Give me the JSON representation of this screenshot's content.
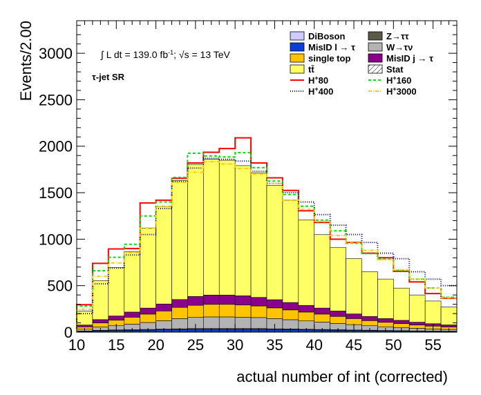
{
  "chart_data": {
    "type": "bar",
    "stacked": true,
    "xlabel": "actual number of int (corrected)",
    "ylabel": "Events/2.00",
    "xlim": [
      10,
      58
    ],
    "ylim": [
      0,
      3350
    ],
    "bin_width": 2,
    "x_ticks": [
      10,
      15,
      20,
      25,
      30,
      35,
      40,
      45,
      50,
      55
    ],
    "y_ticks": [
      0,
      500,
      1000,
      1500,
      2000,
      2500,
      3000
    ],
    "annotation": {
      "lumi_prefix": "∫ L dt = 139.0 fb",
      "lumi_sup": "-1",
      "energy": "; √s = 13 TeV",
      "region": "τ-jet SR"
    },
    "bin_edges": [
      10,
      12,
      14,
      16,
      18,
      20,
      22,
      24,
      26,
      28,
      30,
      32,
      34,
      36,
      38,
      40,
      42,
      44,
      46,
      48,
      50,
      52,
      54,
      56,
      58
    ],
    "stack": [
      {
        "name": "MisID l → τ",
        "color": "#0a3ed8",
        "values": [
          8,
          15,
          18,
          20,
          22,
          25,
          28,
          30,
          30,
          30,
          30,
          30,
          28,
          26,
          24,
          22,
          20,
          18,
          16,
          14,
          12,
          10,
          8,
          7
        ]
      },
      {
        "name": "Z→ττ",
        "color": "#5b5a46",
        "values": [
          4,
          5,
          6,
          6,
          7,
          8,
          8,
          9,
          9,
          9,
          9,
          9,
          8,
          8,
          7,
          7,
          6,
          5,
          5,
          4,
          4,
          3,
          3,
          3
        ]
      },
      {
        "name": "W→τν",
        "color": "#b3b3b3",
        "values": [
          20,
          35,
          45,
          60,
          75,
          90,
          110,
          120,
          125,
          125,
          122,
          118,
          110,
          100,
          90,
          80,
          68,
          58,
          48,
          40,
          34,
          28,
          24,
          20
        ]
      },
      {
        "name": "single top",
        "color": "#ffc400",
        "values": [
          25,
          45,
          60,
          75,
          90,
          105,
          120,
          130,
          135,
          135,
          132,
          125,
          115,
          105,
          95,
          85,
          75,
          65,
          55,
          48,
          42,
          36,
          30,
          26
        ]
      },
      {
        "name": "MisID j → τ",
        "color": "#8a008a",
        "values": [
          20,
          35,
          45,
          55,
          65,
          75,
          85,
          95,
          100,
          100,
          98,
          92,
          88,
          80,
          72,
          65,
          58,
          50,
          45,
          40,
          35,
          30,
          26,
          22
        ]
      },
      {
        "name": "tt̄",
        "color": "#ffff66",
        "values": [
          150,
          420,
          520,
          650,
          860,
          1050,
          1280,
          1420,
          1460,
          1450,
          1400,
          1340,
          1230,
          1100,
          920,
          790,
          685,
          595,
          480,
          425,
          347,
          293,
          244,
          192
        ]
      }
    ],
    "lines": [
      {
        "name": "H+80",
        "color": "#ff0000",
        "dash": "",
        "values": [
          295,
          740,
          895,
          900,
          1390,
          1420,
          1655,
          1820,
          1935,
          1975,
          2090,
          1820,
          1660,
          1525,
          1305,
          1180,
          1000,
          965,
          850,
          800,
          655,
          540,
          415,
          365
        ]
      },
      {
        "name": "H+160",
        "color": "#00dd00",
        "dash": "4,3",
        "values": [
          280,
          660,
          805,
          945,
          1250,
          1400,
          1665,
          1925,
          1895,
          1885,
          1930,
          1770,
          1625,
          1480,
          1355,
          1205,
          1090,
          955,
          845,
          785,
          665,
          570,
          475,
          375
        ]
      },
      {
        "name": "H+400",
        "color": "#000080",
        "dash": "1,2",
        "values": [
          200,
          520,
          690,
          830,
          1050,
          1330,
          1620,
          1765,
          1870,
          1860,
          1840,
          1730,
          1600,
          1500,
          1400,
          1265,
          1150,
          1050,
          965,
          850,
          790,
          650,
          570,
          500
        ]
      },
      {
        "name": "H+3000",
        "color": "#ffcc00",
        "dash": "5,2,1,2",
        "values": [
          245,
          600,
          745,
          855,
          1120,
          1350,
          1610,
          1720,
          1835,
          1810,
          1760,
          1700,
          1600,
          1420,
          1320,
          1190,
          1040,
          960,
          880,
          780,
          670,
          570,
          475,
          370
        ]
      }
    ],
    "legend": {
      "placement": "top-right",
      "columns": [
        [
          {
            "label": "DiBoson",
            "kind": "box",
            "color": "#ccccff"
          },
          {
            "label": "MisID l → τ",
            "kind": "box",
            "color": "#0a3ed8"
          },
          {
            "label": "single top",
            "kind": "box",
            "color": "#ffc400"
          },
          {
            "label": "tt̄",
            "kind": "box",
            "color": "#ffff66"
          },
          {
            "label": "H+80",
            "kind": "line",
            "color": "#ff0000",
            "dash": ""
          },
          {
            "label": "H+400",
            "kind": "line",
            "color": "#000080",
            "dash": "1,2"
          }
        ],
        [
          {
            "label": "Z→ττ",
            "kind": "box",
            "color": "#5b5a46"
          },
          {
            "label": "W→τν",
            "kind": "box",
            "color": "#b3b3b3"
          },
          {
            "label": "MisID j → τ",
            "kind": "box",
            "color": "#8a008a"
          },
          {
            "label": "Stat",
            "kind": "hatch",
            "color": "#ffffff"
          },
          {
            "label": "H+160",
            "kind": "line",
            "color": "#00dd00",
            "dash": "4,3"
          },
          {
            "label": "H+3000",
            "kind": "line",
            "color": "#ffcc00",
            "dash": "5,2,1,2"
          }
        ]
      ]
    }
  }
}
